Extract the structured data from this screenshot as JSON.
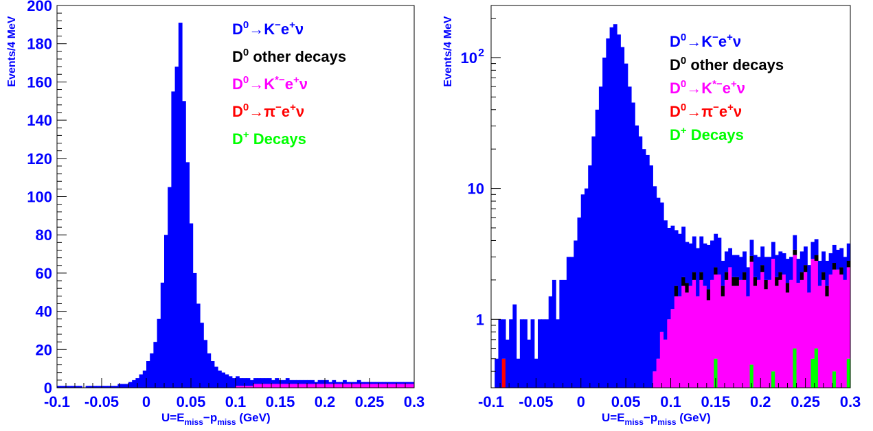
{
  "figure": {
    "x_axis_title": {
      "main": "U=E",
      "sub1": "miss",
      "mid": "−p",
      "sub2": "miss",
      "tail": " (GeV)"
    },
    "y_axis_title": "Events/4 MeV"
  },
  "legend": [
    {
      "key": "k_e_nu",
      "color": "#0000ff",
      "parts": [
        "D",
        "0",
        "→K",
        "−",
        "e",
        "+",
        "ν"
      ]
    },
    {
      "key": "other",
      "color": "#000000",
      "parts": [
        "D",
        "0",
        " other decays"
      ]
    },
    {
      "key": "kstar_e_nu",
      "color": "#ff00ff",
      "parts": [
        "D",
        "0",
        "→K",
        "*−",
        "e",
        "+",
        "ν"
      ]
    },
    {
      "key": "pi_e_nu",
      "color": "#ff0000",
      "parts": [
        "D",
        "0",
        "→π",
        "−",
        "e",
        "+",
        "ν"
      ]
    },
    {
      "key": "dplus",
      "color": "#00ff00",
      "parts": [
        "D",
        "+",
        " Decays"
      ]
    }
  ],
  "chart_data": [
    {
      "type": "bar",
      "stacked": true,
      "yscale": "linear",
      "xlim": [
        -0.1,
        0.3
      ],
      "ylim": [
        0,
        200
      ],
      "x_ticks": [
        "-0.1",
        "-0.05",
        "0",
        "0.05",
        "0.1",
        "0.15",
        "0.2",
        "0.25",
        "0.3"
      ],
      "y_ticks": [
        "0",
        "20",
        "40",
        "60",
        "80",
        "100",
        "120",
        "140",
        "160",
        "180",
        "200"
      ],
      "xlabel": "U=E_miss−p_miss (GeV)",
      "ylabel": "Events/4 MeV",
      "legend_placement": "top-right",
      "bin_width": 0.004,
      "x_range": [
        -0.1,
        0.3
      ],
      "series": [
        {
          "name": "D0→K−e+ν",
          "color": "#0000ff",
          "values": [
            1,
            1,
            1,
            1,
            1,
            1,
            1,
            0,
            1,
            1,
            1,
            1,
            1,
            1,
            1,
            1,
            1,
            2,
            2,
            2,
            3,
            4,
            5,
            7,
            9,
            14,
            18,
            24,
            36,
            55,
            80,
            105,
            155,
            168,
            191,
            150,
            118,
            86,
            60,
            44,
            34,
            25,
            18,
            14,
            11,
            9,
            8,
            7,
            6,
            5,
            5,
            4,
            4,
            4,
            3,
            3,
            3,
            3,
            3,
            3,
            2,
            3,
            2,
            2,
            3,
            2,
            2,
            2,
            2,
            2,
            2,
            2,
            1,
            2,
            2,
            2,
            1,
            2,
            1,
            1,
            2,
            1,
            1,
            1,
            2,
            1,
            1,
            1,
            1,
            1,
            1,
            1,
            1,
            1,
            1,
            1,
            1,
            1,
            1,
            1
          ]
        },
        {
          "name": "D0 other decays",
          "color": "#000000",
          "values": [
            0,
            0,
            0,
            0,
            0,
            0,
            0,
            0,
            0,
            0,
            0,
            0,
            0,
            0,
            0,
            0,
            0,
            0,
            0,
            0,
            0,
            0,
            0,
            0,
            0,
            0,
            0,
            0,
            0,
            0,
            0,
            0,
            0,
            0,
            0,
            0,
            0,
            0,
            0,
            0,
            0,
            0,
            0,
            0,
            0,
            0,
            0,
            0,
            0,
            0,
            0,
            0,
            0,
            0,
            0,
            0,
            0,
            0,
            0,
            0,
            0,
            0,
            0,
            0,
            0,
            0,
            0,
            0,
            0,
            0,
            0,
            0,
            0,
            0,
            0,
            0,
            0,
            0,
            0,
            0,
            0,
            0,
            0,
            0,
            0,
            0,
            0,
            0,
            0,
            0,
            0,
            0,
            0,
            0,
            0,
            0,
            0,
            0,
            0,
            0
          ]
        },
        {
          "name": "D0→K*−e+ν",
          "color": "#ff00ff",
          "values": [
            0,
            0,
            0,
            0,
            0,
            0,
            0,
            0,
            0,
            0,
            0,
            0,
            0,
            0,
            0,
            0,
            0,
            0,
            0,
            0,
            0,
            0,
            0,
            0,
            0,
            0,
            0,
            0,
            0,
            0,
            0,
            0,
            0,
            0,
            0,
            0,
            0,
            0,
            0,
            0,
            0,
            0,
            0,
            0,
            0,
            0,
            0,
            0,
            0,
            0,
            1,
            1,
            1,
            1,
            1,
            2,
            2,
            2,
            2,
            2,
            2,
            2,
            2,
            2,
            2,
            2,
            2,
            2,
            2,
            2,
            2,
            2,
            2,
            2,
            2,
            2,
            2,
            2,
            2,
            2,
            2,
            2,
            2,
            2,
            2,
            2,
            2,
            2,
            2,
            2,
            2,
            2,
            2,
            2,
            2,
            2,
            2,
            2,
            2,
            2
          ]
        },
        {
          "name": "D0→π−e+ν",
          "color": "#ff0000",
          "values": [
            0,
            0,
            0,
            0,
            0,
            0,
            0,
            0,
            0,
            0,
            0,
            0,
            0,
            0,
            0,
            0,
            0,
            0,
            0,
            0,
            0,
            0,
            0,
            0,
            0,
            0,
            0,
            0,
            0,
            0,
            0,
            0,
            0,
            0,
            0,
            0,
            0,
            0,
            0,
            0,
            0,
            0,
            0,
            0,
            0,
            0,
            0,
            0,
            0,
            0,
            0,
            0,
            0,
            0,
            0,
            0,
            0,
            0,
            0,
            0,
            0,
            0,
            0,
            0,
            0,
            0,
            0,
            0,
            0,
            0,
            0,
            0,
            0,
            0,
            0,
            0,
            0,
            0,
            0,
            0,
            0,
            0,
            0,
            0,
            0,
            0,
            0,
            0,
            0,
            0,
            0,
            0,
            0,
            0,
            0,
            0,
            0,
            0,
            0,
            0
          ]
        },
        {
          "name": "D+ Decays",
          "color": "#00ff00",
          "values": [
            0,
            0,
            0,
            0,
            0,
            0,
            0,
            0,
            0,
            0,
            0,
            0,
            0,
            0,
            0,
            0,
            0,
            0,
            0,
            0,
            0,
            0,
            0,
            0,
            0,
            0,
            0,
            0,
            0,
            0,
            0,
            0,
            0,
            0,
            0,
            0,
            0,
            0,
            0,
            0,
            0,
            0,
            0,
            0,
            0,
            0,
            0,
            0,
            0,
            0,
            0,
            0,
            0,
            0,
            0,
            0,
            0,
            0,
            0,
            0,
            0,
            0,
            0,
            0,
            0,
            0,
            0,
            0,
            0,
            0,
            0,
            0,
            0,
            0,
            0,
            0,
            0,
            0,
            0,
            0,
            0,
            0,
            0,
            0,
            0,
            0,
            0,
            0,
            0,
            0,
            0,
            0,
            0,
            0,
            0,
            0,
            0,
            0,
            0,
            0
          ]
        }
      ]
    },
    {
      "type": "bar",
      "stacked": true,
      "yscale": "log",
      "xlim": [
        -0.1,
        0.3
      ],
      "ylim": [
        0.3,
        250
      ],
      "x_ticks": [
        "-0.1",
        "-0.05",
        "0",
        "0.05",
        "0.1",
        "0.15",
        "0.2",
        "0.25",
        "0.3"
      ],
      "y_ticks": [
        {
          "value": 1,
          "base": "1",
          "exp": ""
        },
        {
          "value": 10,
          "base": "10",
          "exp": ""
        },
        {
          "value": 100,
          "base": "10",
          "exp": "2"
        }
      ],
      "xlabel": "U=E_miss−p_miss (GeV)",
      "ylabel": "Events/4 MeV",
      "legend_placement": "top-right",
      "bin_width": 0.004,
      "x_range": [
        -0.1,
        0.3
      ],
      "series": [
        {
          "name": "D0→K−e+ν",
          "color": "#0000ff",
          "values": [
            0,
            0.5,
            1,
            0.5,
            0.7,
            1,
            1,
            0.5,
            1,
            1,
            0.7,
            1,
            0.5,
            1,
            1,
            1,
            1.5,
            2,
            1,
            2,
            2,
            3,
            3,
            4,
            6,
            9,
            10,
            15,
            25,
            40,
            60,
            100,
            140,
            170,
            180,
            150,
            120,
            90,
            60,
            45,
            30,
            25,
            20,
            18,
            15,
            10,
            8,
            7,
            5,
            4,
            4,
            3,
            3,
            3,
            2,
            2,
            2,
            2,
            2,
            2,
            2,
            2,
            2,
            2,
            1,
            1,
            1,
            1,
            1,
            1,
            1,
            1,
            1,
            1,
            1,
            1,
            1,
            1,
            1,
            1,
            1,
            1,
            1,
            1,
            1,
            1,
            1,
            1,
            1,
            1,
            1,
            1,
            1,
            1,
            1,
            1,
            1,
            1,
            1,
            1
          ]
        },
        {
          "name": "D0 other decays",
          "color": "#000000",
          "values": [
            0,
            0,
            0,
            0,
            0,
            0,
            0,
            0,
            0,
            0,
            0,
            0,
            0,
            0,
            0,
            0,
            0,
            0,
            0,
            0,
            0,
            0,
            0,
            0,
            0,
            0,
            0,
            0,
            0,
            0,
            0,
            0,
            0,
            0.3,
            0,
            0,
            0.3,
            0,
            0,
            0.3,
            0.3,
            0,
            0,
            0,
            0,
            0,
            0,
            0,
            0,
            0,
            0,
            0.3,
            0,
            0.3,
            0.3,
            0,
            0.3,
            0,
            0.3,
            0,
            0.3,
            0,
            0.3,
            0,
            0.3,
            0.3,
            0,
            0.3,
            0.3,
            0,
            0.3,
            0,
            0.3,
            0.3,
            0,
            0.3,
            0.3,
            0,
            0,
            0.3,
            0.3,
            0,
            0.3,
            0,
            0.3,
            0,
            0.3,
            0.3,
            0,
            0,
            0.3,
            0,
            0.3,
            0.3,
            0,
            0.3,
            0,
            0.3,
            0,
            0.3
          ]
        },
        {
          "name": "D0→K*−e+ν",
          "color": "#ff00ff",
          "values": [
            0,
            0,
            0,
            0,
            0,
            0,
            0,
            0,
            0,
            0,
            0,
            0,
            0,
            0,
            0,
            0,
            0,
            0,
            0,
            0,
            0,
            0,
            0,
            0,
            0,
            0,
            0,
            0,
            0,
            0,
            0,
            0,
            0,
            0,
            0,
            0,
            0,
            0,
            0,
            0,
            0,
            0,
            0,
            0,
            0,
            0.4,
            0.5,
            0.8,
            0.7,
            1,
            1.2,
            1.5,
            1.5,
            1.8,
            1.6,
            1.8,
            2,
            1.5,
            2,
            1.8,
            1.4,
            2,
            1.7,
            2.2,
            1.5,
            2,
            2.5,
            1.5,
            1.8,
            2,
            2,
            1.5,
            2.3,
            1.8,
            2,
            2.3,
            1.7,
            2,
            2.5,
            1.8,
            2,
            2.2,
            1.6,
            2,
            2.5,
            1.9,
            2,
            2,
            1.6,
            2.4,
            2.2,
            1.8,
            2,
            1.5,
            2.2,
            2,
            2.4,
            1.9,
            2,
            2
          ]
        },
        {
          "name": "D0→π−e+ν",
          "color": "#ff0000",
          "values": [
            0.3,
            0,
            0,
            0.5,
            0,
            0,
            0.3,
            0,
            0,
            0,
            0,
            0,
            0,
            0,
            0,
            0,
            0,
            0,
            0,
            0,
            0,
            0,
            0,
            0,
            0,
            0,
            0,
            0,
            0,
            0,
            0,
            0,
            0,
            0,
            0,
            0,
            0,
            0,
            0,
            0,
            0,
            0,
            0,
            0,
            0,
            0,
            0,
            0,
            0,
            0,
            0,
            0,
            0,
            0,
            0,
            0,
            0,
            0,
            0,
            0,
            0,
            0,
            0,
            0,
            0,
            0,
            0,
            0,
            0,
            0,
            0,
            0,
            0,
            0,
            0,
            0,
            0,
            0,
            0,
            0,
            0,
            0,
            0,
            0,
            0,
            0,
            0,
            0,
            0,
            0,
            0,
            0,
            0,
            0,
            0,
            0,
            0,
            0,
            0,
            0
          ]
        },
        {
          "name": "D+ Decays",
          "color": "#00ff00",
          "values": [
            0,
            0,
            0,
            0,
            0,
            0,
            0,
            0,
            0,
            0,
            0,
            0,
            0,
            0,
            0,
            0,
            0,
            0,
            0,
            0,
            0,
            0,
            0,
            0,
            0,
            0,
            0,
            0,
            0,
            0,
            0,
            0,
            0,
            0,
            0,
            0,
            0,
            0,
            0,
            0,
            0,
            0,
            0,
            0,
            0,
            0,
            0,
            0,
            0,
            0,
            0,
            0,
            0,
            0,
            0,
            0,
            0,
            0,
            0,
            0,
            0,
            0,
            0.5,
            0,
            0,
            0,
            0,
            0.3,
            0,
            0,
            0,
            0,
            0.45,
            0,
            0,
            0,
            0,
            0,
            0.4,
            0,
            0,
            0,
            0,
            0,
            0.6,
            0,
            0,
            0.3,
            0,
            0.5,
            0.6,
            0,
            0,
            0,
            0,
            0.4,
            0,
            0.3,
            0,
            0.5
          ]
        }
      ]
    }
  ]
}
